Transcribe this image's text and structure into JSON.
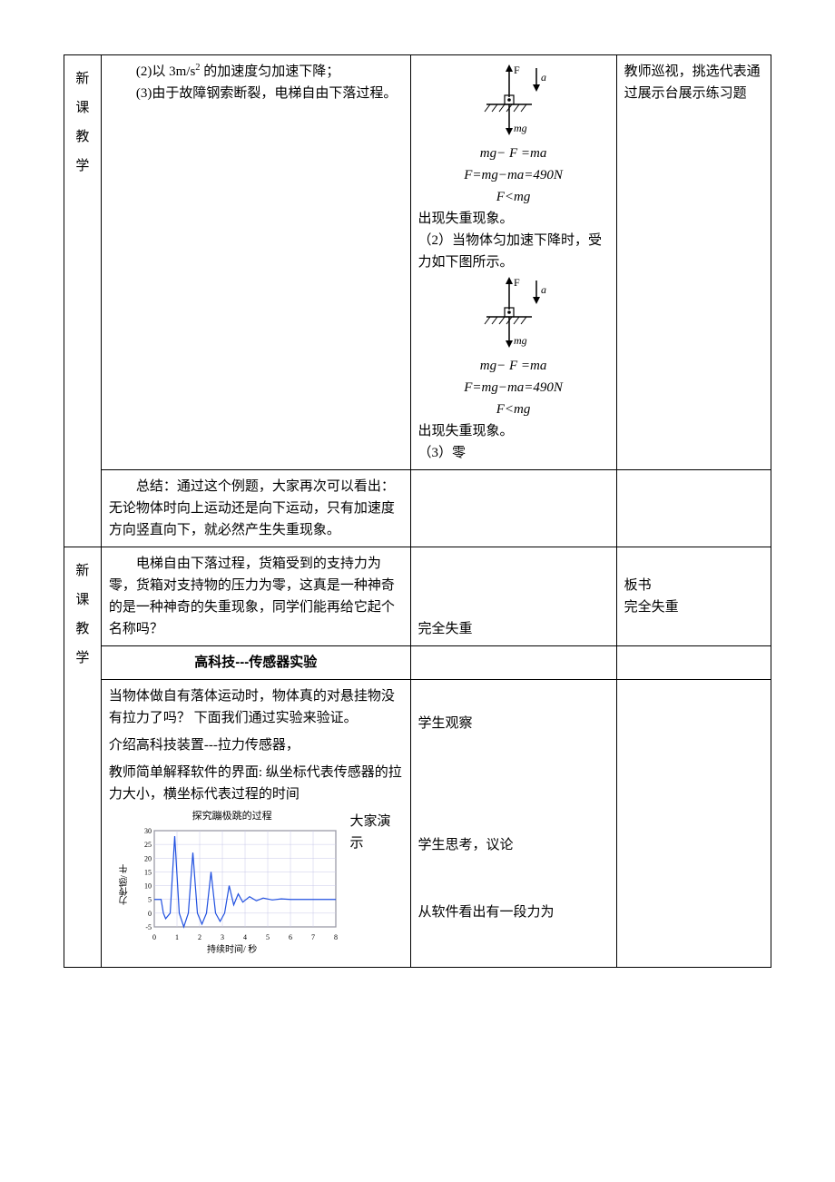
{
  "left_labels": {
    "upper": "新课教学",
    "lower": "新课教学"
  },
  "row_problem": {
    "teacher": {
      "line1_prefix": "(2)以 3m/s",
      "line1_sup": "2",
      "line1_suffix": " 的加速度匀加速下降；",
      "line2": "(3)由于故障钢索断裂，电梯自由下落过程。"
    },
    "student": {
      "diagram1": {
        "F_label": "F",
        "a_label": "a",
        "mg_label": "mg"
      },
      "eq1": "mg− F =ma",
      "eq2": "F=mg−ma=490N",
      "eq3": "F<mg",
      "text1": "出现失重现象。",
      "text2": "（2）当物体匀加速下降时，受力如下图所示。",
      "diagram2": {
        "F_label": "F",
        "a_label": "a",
        "mg_label": "mg"
      },
      "eq4": "mg− F =ma",
      "eq5": "F=mg−ma=490N",
      "eq6": "F<mg",
      "text3": "出现失重现象。",
      "text4": "（3）零"
    },
    "note": "教师巡视，挑选代表通过展示台展示练习题"
  },
  "row_summary": {
    "teacher": "总结：通过这个例题，大家再次可以看出：无论物体时向上运动还是向下运动，只有加速度方向竖直向下，就必然产生失重现象。"
  },
  "row_freefall": {
    "teacher": "电梯自由下落过程，货箱受到的支持力为零，货箱对支持物的压力为零，这真是一种神奇的是一种神奇的失重现象，同学们能再给它起个名称吗？",
    "student": "完全失重",
    "note1": "板书",
    "note2": "完全失重"
  },
  "row_section_title": "高科技---传感器实验",
  "row_experiment": {
    "teacher": {
      "p1": "当物体做自有落体运动时，物体真的对悬挂物没有拉力了吗？ 下面我们通过实验来验证。",
      "p2": "介绍高科技装置---拉力传感器，",
      "p3": "教师简单解释软件的界面: 纵坐标代表传感器的拉力大小，横坐标代表过程的时间",
      "side_text": "大家演示"
    },
    "student": {
      "s1": "学生观察",
      "s2": "学生思考，议论",
      "s3": "从软件看出有一段力为"
    },
    "chart": {
      "title": "探究蹦极跳的过程",
      "ylabel": "力传感/ 牛",
      "xlabel": "持续时间/ 秒",
      "x_ticks": [
        0,
        1,
        2,
        3,
        4,
        5,
        6,
        7,
        8
      ],
      "y_ticks": [
        -5,
        0,
        5,
        10,
        15,
        20,
        25,
        30
      ],
      "xlim": [
        0,
        8
      ],
      "ylim": [
        -5,
        30
      ],
      "line_color": "#2050e0",
      "grid_color": "#c8c8e8",
      "bg_color": "#ffffff",
      "points": [
        [
          0.0,
          5
        ],
        [
          0.3,
          5
        ],
        [
          0.4,
          0
        ],
        [
          0.5,
          -2
        ],
        [
          0.7,
          0
        ],
        [
          0.9,
          28
        ],
        [
          1.1,
          0
        ],
        [
          1.3,
          -5
        ],
        [
          1.5,
          0
        ],
        [
          1.7,
          22
        ],
        [
          1.9,
          0
        ],
        [
          2.1,
          -4
        ],
        [
          2.3,
          0
        ],
        [
          2.5,
          15
        ],
        [
          2.7,
          0
        ],
        [
          2.9,
          -3
        ],
        [
          3.1,
          0
        ],
        [
          3.3,
          10
        ],
        [
          3.5,
          3
        ],
        [
          3.7,
          7
        ],
        [
          3.9,
          4
        ],
        [
          4.2,
          6
        ],
        [
          4.5,
          4.5
        ],
        [
          4.8,
          5.5
        ],
        [
          5.2,
          4.8
        ],
        [
          5.6,
          5.2
        ],
        [
          6.0,
          5
        ],
        [
          6.5,
          5
        ],
        [
          7.0,
          5
        ],
        [
          7.5,
          5
        ],
        [
          8.0,
          5
        ]
      ]
    }
  },
  "colors": {
    "text": "#000000",
    "border": "#000000",
    "chart_line": "#2050e0",
    "chart_grid": "#c8c8e8"
  }
}
